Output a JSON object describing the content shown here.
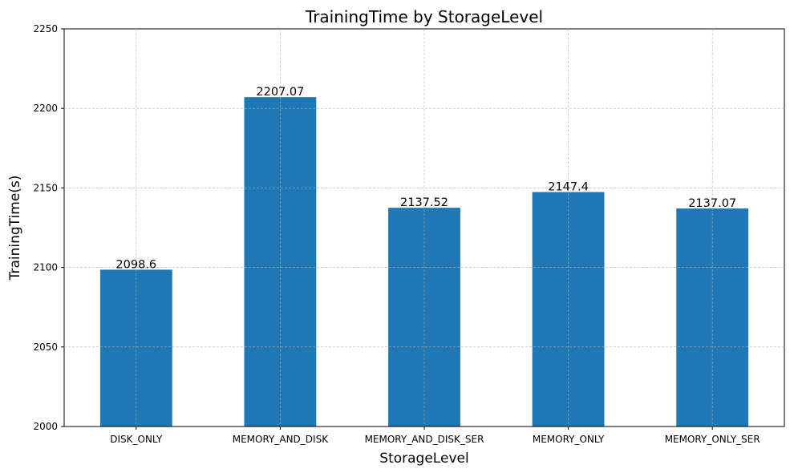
{
  "chart_data": {
    "type": "bar",
    "title": "TrainingTime by StorageLevel",
    "xlabel": "StorageLevel",
    "ylabel": "TrainingTime(s)",
    "categories": [
      "DISK_ONLY",
      "MEMORY_AND_DISK",
      "MEMORY_AND_DISK_SER",
      "MEMORY_ONLY",
      "MEMORY_ONLY_SER"
    ],
    "values": [
      2098.6,
      2207.07,
      2137.52,
      2147.4,
      2137.07
    ],
    "value_labels": [
      "2098.6",
      "2207.07",
      "2137.52",
      "2147.4",
      "2137.07"
    ],
    "ylim": [
      2000,
      2250
    ],
    "yticks": [
      2000,
      2050,
      2100,
      2150,
      2200,
      2250
    ],
    "grid": true,
    "bar_color": "#1f77b4"
  }
}
